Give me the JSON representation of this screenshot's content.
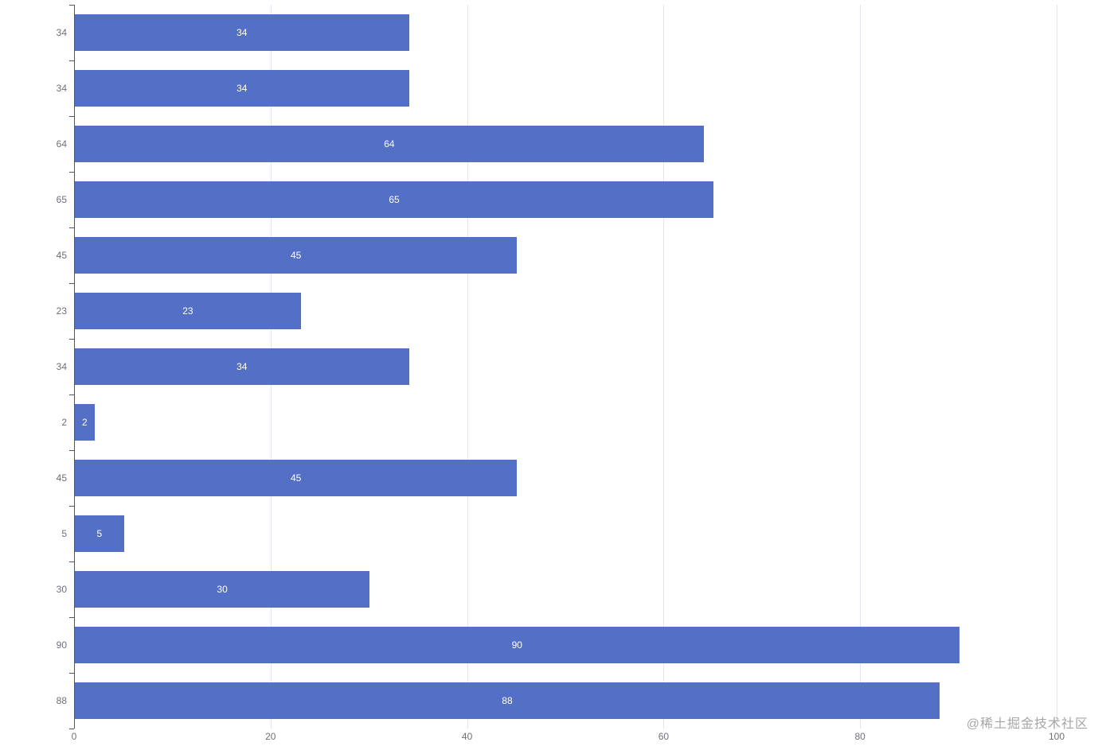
{
  "chart_data": {
    "type": "bar",
    "orientation": "horizontal",
    "title": "",
    "xlabel": "",
    "ylabel": "",
    "categories": [
      "34",
      "34",
      "64",
      "65",
      "45",
      "23",
      "34",
      "2",
      "45",
      "5",
      "30",
      "90",
      "88"
    ],
    "values": [
      34,
      34,
      64,
      65,
      45,
      23,
      34,
      2,
      45,
      5,
      30,
      90,
      88
    ],
    "value_labels": [
      "34",
      "34",
      "64",
      "65",
      "45",
      "23",
      "34",
      "2",
      "45",
      "5",
      "30",
      "90",
      "88"
    ],
    "value_label_position": "inside-center",
    "xlim": [
      0,
      100
    ],
    "x_ticks": [
      0,
      20,
      40,
      60,
      80,
      100
    ],
    "grid": "vertical splitlines on",
    "legend": "none",
    "colors": {
      "bar": "#5470c6",
      "bar_label": "#ffffff",
      "axis_line": "#555555",
      "axis_text": "#6e7079",
      "gridline": "#e0e6f1"
    }
  },
  "watermark": {
    "text": "@稀土掘金技术社区",
    "color": "#a6a6a6"
  }
}
